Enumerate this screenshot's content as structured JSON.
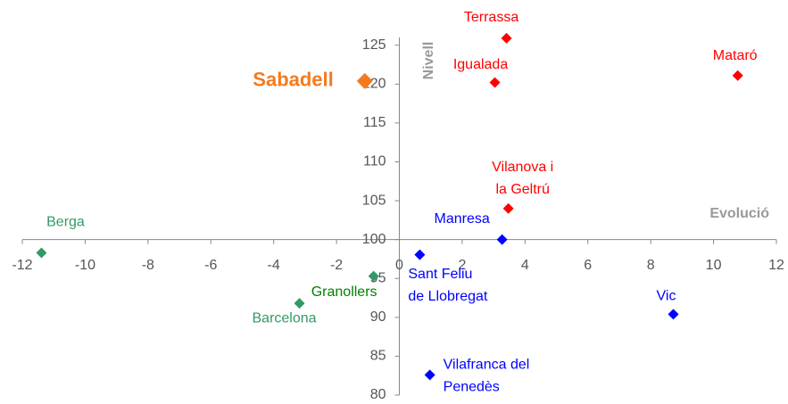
{
  "chart_data": {
    "type": "scatter",
    "x_label": "Evolució",
    "y_label": "Nivell",
    "xlim": [
      -12,
      12
    ],
    "xticks": [
      -12,
      -10,
      -8,
      -6,
      -4,
      -2,
      0,
      2,
      4,
      6,
      8,
      10,
      12
    ],
    "ylim": [
      80,
      126
    ],
    "yticks": [
      80,
      85,
      90,
      95,
      100,
      105,
      110,
      115,
      120,
      125
    ],
    "points": [
      {
        "label": [
          "Terrassa"
        ],
        "x": 3.41,
        "y": 125.9,
        "color": "#ff0000",
        "label_color": "#ff0000"
      },
      {
        "label": [
          "Igualada"
        ],
        "x": 3.04,
        "y": 120.2,
        "color": "#ff0000",
        "label_color": "#ff0000"
      },
      {
        "label": [
          "Mataró"
        ],
        "x": 10.77,
        "y": 121.1,
        "color": "#ff0000",
        "label_color": "#ff0000"
      },
      {
        "label": [
          "Sabadell"
        ],
        "x": -1.1,
        "y": 120.4,
        "color": "#f47a20",
        "label_color": "#f47a20"
      },
      {
        "label": [
          "Vilanova i",
          "la Geltrú"
        ],
        "x": 3.47,
        "y": 104.0,
        "color": "#ff0000",
        "label_color": "#ff0000"
      },
      {
        "label": [
          "Manresa"
        ],
        "x": 3.27,
        "y": 100.0,
        "color": "#0000ff",
        "label_color": "#0000ff"
      },
      {
        "label": [
          "Sant Feliu",
          "de Llobregat"
        ],
        "x": 0.65,
        "y": 98.05,
        "color": "#0000ff",
        "label_color": "#0000ff"
      },
      {
        "label": [
          "Vic"
        ],
        "x": 8.72,
        "y": 90.4,
        "color": "#0000ff",
        "label_color": "#0000ff"
      },
      {
        "label": [
          "Vilafranca del",
          "Penedès"
        ],
        "x": 0.97,
        "y": 82.6,
        "color": "#0000ff",
        "label_color": "#0000ff"
      },
      {
        "label": [
          "Berga"
        ],
        "x": -11.39,
        "y": 98.3,
        "color": "#339966",
        "label_color": "#339966"
      },
      {
        "label": [
          "Granollers"
        ],
        "x": -0.82,
        "y": 95.3,
        "color": "#339966",
        "label_color": "#008000"
      },
      {
        "label": [
          "Barcelona"
        ],
        "x": -3.18,
        "y": 91.8,
        "color": "#339966",
        "label_color": "#339966"
      }
    ]
  }
}
